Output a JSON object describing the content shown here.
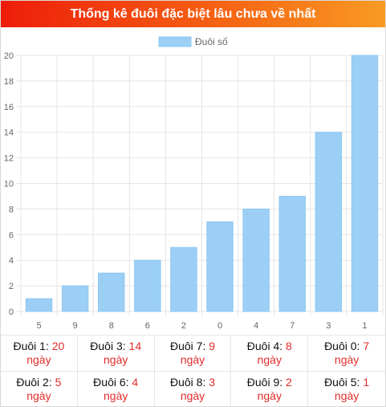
{
  "header": {
    "title": "Thống kê đuôi đặc biệt lâu chưa về nhất"
  },
  "colors": {
    "bar": "#9ccff5",
    "bar_border": "#8fc8f2",
    "grid": "#e5e5e5",
    "accent_text": "#e32b2b",
    "header_start": "#ee1c0a",
    "header_end": "#f99a22"
  },
  "chart_data": {
    "type": "bar",
    "categories": [
      "5",
      "9",
      "8",
      "6",
      "2",
      "0",
      "4",
      "7",
      "3",
      "1"
    ],
    "series": [
      {
        "name": "Đuôi số",
        "values": [
          1,
          2,
          3,
          4,
          5,
          7,
          8,
          9,
          14,
          20
        ]
      }
    ],
    "ylim": [
      0,
      20
    ],
    "yticks": [
      "0",
      "2",
      "4",
      "6",
      "8",
      "10",
      "12",
      "14",
      "16",
      "18",
      "20"
    ],
    "grid": true,
    "legend": "top-center"
  },
  "summary": {
    "label_prefix": "Đuôi",
    "unit": "ngày",
    "items": [
      {
        "label": "Đuôi 1: ",
        "value": "20",
        "unit": "ngày"
      },
      {
        "label": "Đuôi 3: ",
        "value": "14",
        "unit": "ngày"
      },
      {
        "label": "Đuôi 7: ",
        "value": "9",
        "unit": "ngày"
      },
      {
        "label": "Đuôi 4: ",
        "value": "8",
        "unit": "ngày"
      },
      {
        "label": "Đuôi 0: ",
        "value": "7",
        "unit": "ngày"
      },
      {
        "label": "Đuôi 2: ",
        "value": "5",
        "unit": "ngày"
      },
      {
        "label": "Đuôi 6: ",
        "value": "4",
        "unit": "ngày"
      },
      {
        "label": "Đuôi 8: ",
        "value": "3",
        "unit": "ngày"
      },
      {
        "label": "Đuôi 9: ",
        "value": "2",
        "unit": "ngày"
      },
      {
        "label": "Đuôi 5: ",
        "value": "1",
        "unit": "ngày"
      }
    ]
  }
}
